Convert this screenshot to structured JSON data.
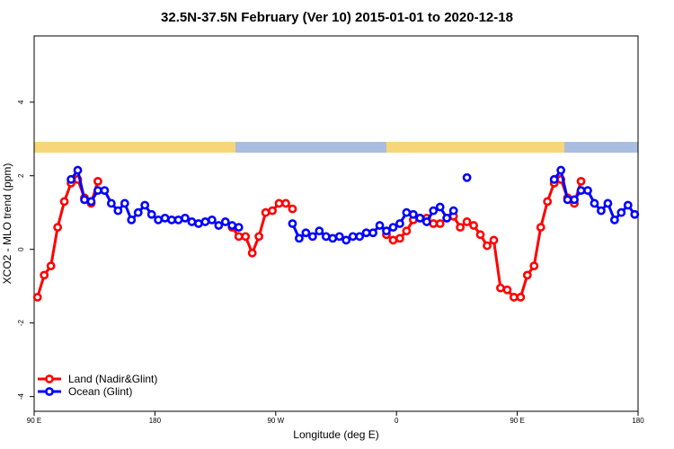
{
  "chart_data": {
    "type": "line",
    "title": "32.5N-37.5N February (Ver 10)   2015-01-01 to 2020-12-18",
    "x_label": "Longitude (deg E)",
    "y_label": "XCO2 - MLO trend (ppm)",
    "x": [
      92.5,
      97.5,
      102.5,
      107.5,
      112.5,
      117.5,
      122.5,
      127.5,
      132.5,
      137.5,
      142.5,
      147.5,
      152.5,
      157.5,
      162.5,
      167.5,
      172.5,
      177.5,
      182.5,
      187.5,
      192.5,
      197.5,
      202.5,
      207.5,
      212.5,
      217.5,
      222.5,
      227.5,
      232.5,
      237.5,
      242.5,
      247.5,
      252.5,
      257.5,
      262.5,
      267.5,
      272.5,
      277.5,
      282.5,
      287.5,
      292.5,
      297.5,
      302.5,
      307.5,
      312.5,
      317.5,
      322.5,
      327.5,
      332.5,
      337.5,
      342.5,
      347.5,
      352.5,
      357.5,
      362.5,
      367.5,
      372.5,
      377.5,
      382.5,
      387.5,
      392.5,
      397.5,
      402.5,
      407.5,
      412.5,
      417.5,
      422.5,
      427.5,
      432.5,
      437.5,
      442.5,
      447.5,
      452.5,
      457.5,
      462.5,
      467.5,
      472.5,
      477.5,
      482.5,
      487.5,
      492.5,
      497.5,
      502.5,
      507.5,
      512.5,
      517.5,
      522.5,
      527.5,
      532.5,
      537.5
    ],
    "series": [
      {
        "name": "Land (Nadir&Glint)",
        "color": "#ff0000",
        "values": [
          -1.3,
          -0.7,
          -0.45,
          0.6,
          1.3,
          1.8,
          1.9,
          1.4,
          1.25,
          1.85,
          null,
          null,
          null,
          null,
          null,
          null,
          null,
          null,
          null,
          null,
          null,
          null,
          null,
          null,
          null,
          null,
          null,
          null,
          null,
          0.6,
          0.35,
          0.35,
          -0.1,
          0.35,
          1.0,
          1.05,
          1.25,
          1.25,
          1.1,
          null,
          null,
          null,
          null,
          null,
          null,
          null,
          null,
          null,
          null,
          null,
          null,
          null,
          0.4,
          0.25,
          0.3,
          0.5,
          0.8,
          0.85,
          0.85,
          0.7,
          0.7,
          0.85,
          0.9,
          0.6,
          0.75,
          0.65,
          0.4,
          0.1,
          0.25,
          -1.05,
          -1.1,
          -1.3,
          -1.3,
          -0.7,
          -0.45,
          0.6,
          1.3,
          1.8,
          1.9,
          1.4,
          1.25,
          1.85,
          null,
          null,
          null,
          null,
          null,
          null,
          null,
          null
        ]
      },
      {
        "name": "Ocean (Glint)",
        "color": "#0000ff",
        "values": [
          null,
          null,
          null,
          null,
          null,
          1.9,
          2.15,
          1.35,
          1.3,
          1.6,
          1.6,
          1.25,
          1.05,
          1.25,
          0.8,
          1.0,
          1.2,
          0.95,
          0.8,
          0.85,
          0.8,
          0.8,
          0.85,
          0.75,
          0.7,
          0.75,
          0.8,
          0.65,
          0.75,
          0.65,
          0.6,
          null,
          null,
          null,
          null,
          null,
          null,
          null,
          0.7,
          0.3,
          0.45,
          0.35,
          0.5,
          0.35,
          0.3,
          0.35,
          0.25,
          0.35,
          0.35,
          0.45,
          0.45,
          0.65,
          0.5,
          0.6,
          0.7,
          1.0,
          0.95,
          0.85,
          0.75,
          1.05,
          1.15,
          0.85,
          1.05,
          null,
          1.95,
          null,
          null,
          null,
          null,
          null,
          null,
          null,
          null,
          null,
          null,
          null,
          null,
          1.9,
          2.15,
          1.35,
          1.35,
          1.6,
          1.6,
          1.25,
          1.05,
          1.25,
          0.8,
          1.0,
          1.2,
          0.95
        ]
      }
    ],
    "xlim": [
      90,
      540
    ],
    "ylim": [
      -4.4,
      5.8
    ],
    "xticks": [
      {
        "value": 90,
        "label": "90 E"
      },
      180,
      {
        "value": 270,
        "label": "90 W"
      },
      {
        "value": 360,
        "label": "0"
      },
      {
        "value": 450,
        "label": "90 E"
      },
      {
        "value": 540,
        "label": "180"
      }
    ],
    "yticks": [
      -4,
      -2,
      0,
      2,
      4
    ],
    "legend": "bottom-left"
  }
}
